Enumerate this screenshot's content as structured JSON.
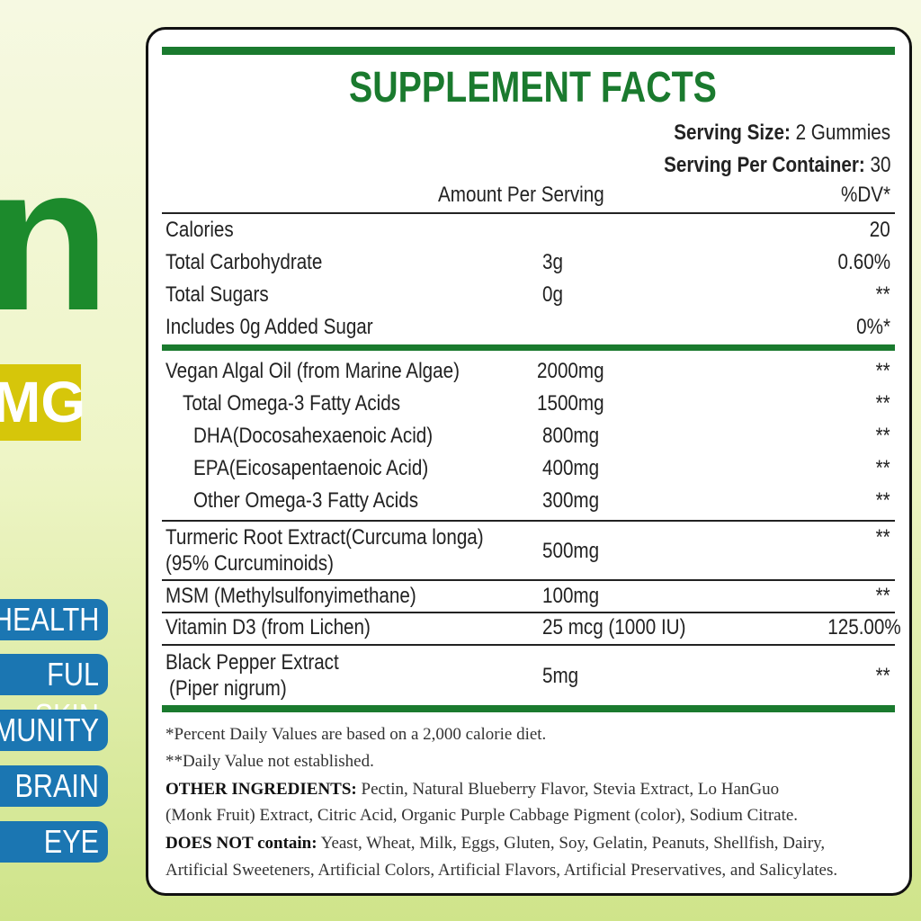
{
  "side": {
    "big_letter": "n",
    "dose": "MG",
    "benefits": [
      "HEALTH",
      "FUL SKIN",
      "MUNITY",
      "BRAIN",
      "EYE"
    ]
  },
  "header": {
    "title": "SUPPLEMENT FACTS",
    "serving_size_label": "Serving Size:",
    "serving_size": "2 Gummies",
    "servings_label": "Serving Per Container:",
    "servings": "30",
    "amount_header": "Amount Per Serving",
    "dv_header": "%DV*"
  },
  "rows": [
    {
      "name": [
        "Calories"
      ],
      "dv": "20"
    },
    {
      "name": [
        "Total Carbohydrate"
      ],
      "amount": "3g",
      "dv": "0.60%"
    },
    {
      "name": [
        "Total Sugars"
      ],
      "amount": "0g",
      "dv": "**"
    },
    {
      "name": [
        "Includes 0g Added Sugar"
      ],
      "dv": "0%*"
    },
    {
      "name": [
        "Vegan Algal Oil (from Marine Algae)"
      ],
      "amount": "2000mg",
      "dv": "**"
    },
    {
      "name": [
        "Total Omega-3 Fatty Acids"
      ],
      "amount": "1500mg",
      "dv": "**"
    },
    {
      "name": [
        "DHA(Docosahexaenoic Acid)"
      ],
      "amount": "800mg",
      "dv": "**"
    },
    {
      "name": [
        "EPA(Eicosapentaenoic Acid)"
      ],
      "amount": "400mg",
      "dv": "**"
    },
    {
      "name": [
        "Other Omega-3 Fatty Acids"
      ],
      "amount": "300mg",
      "dv": "**"
    },
    {
      "name": [
        "Turmeric Root Extract(Curcuma longa)",
        "(95% Curcuminoids)"
      ],
      "amount": "500mg",
      "dv": "**"
    },
    {
      "name": [
        "MSM (Methylsulfonyimethane)"
      ],
      "amount": "100mg",
      "dv": "**"
    },
    {
      "name": [
        "Vitamin D3 (from Lichen)"
      ],
      "amount": "25 mcg (1000 IU)",
      "dv": "125.00%"
    },
    {
      "name": [
        "Black Pepper Extract",
        "(Piper nigrum)"
      ],
      "amount": "5mg",
      "dv": "**"
    }
  ],
  "footer": {
    "note1": "*Percent Daily Values are based on a 2,000 calorie diet.",
    "note2": "**Daily Value not established.",
    "other_label": "OTHER INGREDIENTS:",
    "other_text": "Pectin, Natural Blueberry Flavor, Stevia Extract, Lo HanGuo",
    "other_text2": "(Monk Fruit) Extract, Citric Acid, Organic Purple Cabbage Pigment (color), Sodium Citrate.",
    "free_label": "DOES NOT contain:",
    "free_text": "Yeast, Wheat, Milk, Eggs, Gluten, Soy, Gelatin, Peanuts, Shellfish, Dairy,",
    "free_text2": "Artificial Sweeteners, Artificial Colors, Artificial Flavors, Artificial Preservatives, and Salicylates."
  }
}
